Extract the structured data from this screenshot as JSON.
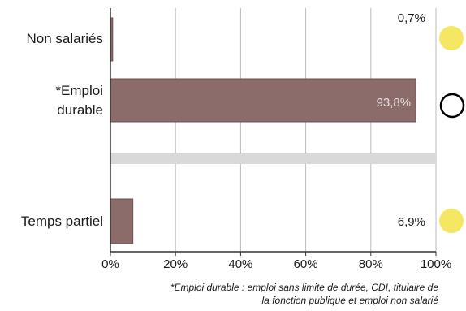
{
  "chart_data": {
    "type": "bar",
    "orientation": "horizontal",
    "categories": [
      "Non salariés",
      "*Emploi durable",
      "Temps partiel"
    ],
    "category_label_lines": [
      [
        "Non salariés"
      ],
      [
        "*Emploi",
        "durable"
      ],
      [
        "Temps partiel"
      ]
    ],
    "values": [
      0.7,
      93.8,
      6.9
    ],
    "value_labels": [
      "0,7%",
      "93,8%",
      "6,9%"
    ],
    "xlim": [
      0,
      100
    ],
    "x_ticks": [
      0,
      20,
      40,
      60,
      80,
      100
    ],
    "x_tick_labels": [
      "0%",
      "20%",
      "40%",
      "60%",
      "80%",
      "100%"
    ],
    "grid": true,
    "separator_bar": {
      "value": 100,
      "color": "#d9d9d9"
    },
    "markers": [
      {
        "category": "Non salariés",
        "style": "filled",
        "color": "#f5e663"
      },
      {
        "category": "*Emploi durable",
        "style": "outline",
        "color": "#000000"
      },
      {
        "category": "Temps partiel",
        "style": "filled",
        "color": "#f5e663"
      }
    ],
    "colors": {
      "bar": "#8c6b6b",
      "bar_stroke": "#6e5252",
      "grid": "#bbbbbb",
      "axis": "#333333"
    }
  },
  "footnote": {
    "line1": "*Emploi durable : emploi sans limite de durée, CDI, titulaire de",
    "line2": "la fonction publique et emploi non salarié"
  }
}
